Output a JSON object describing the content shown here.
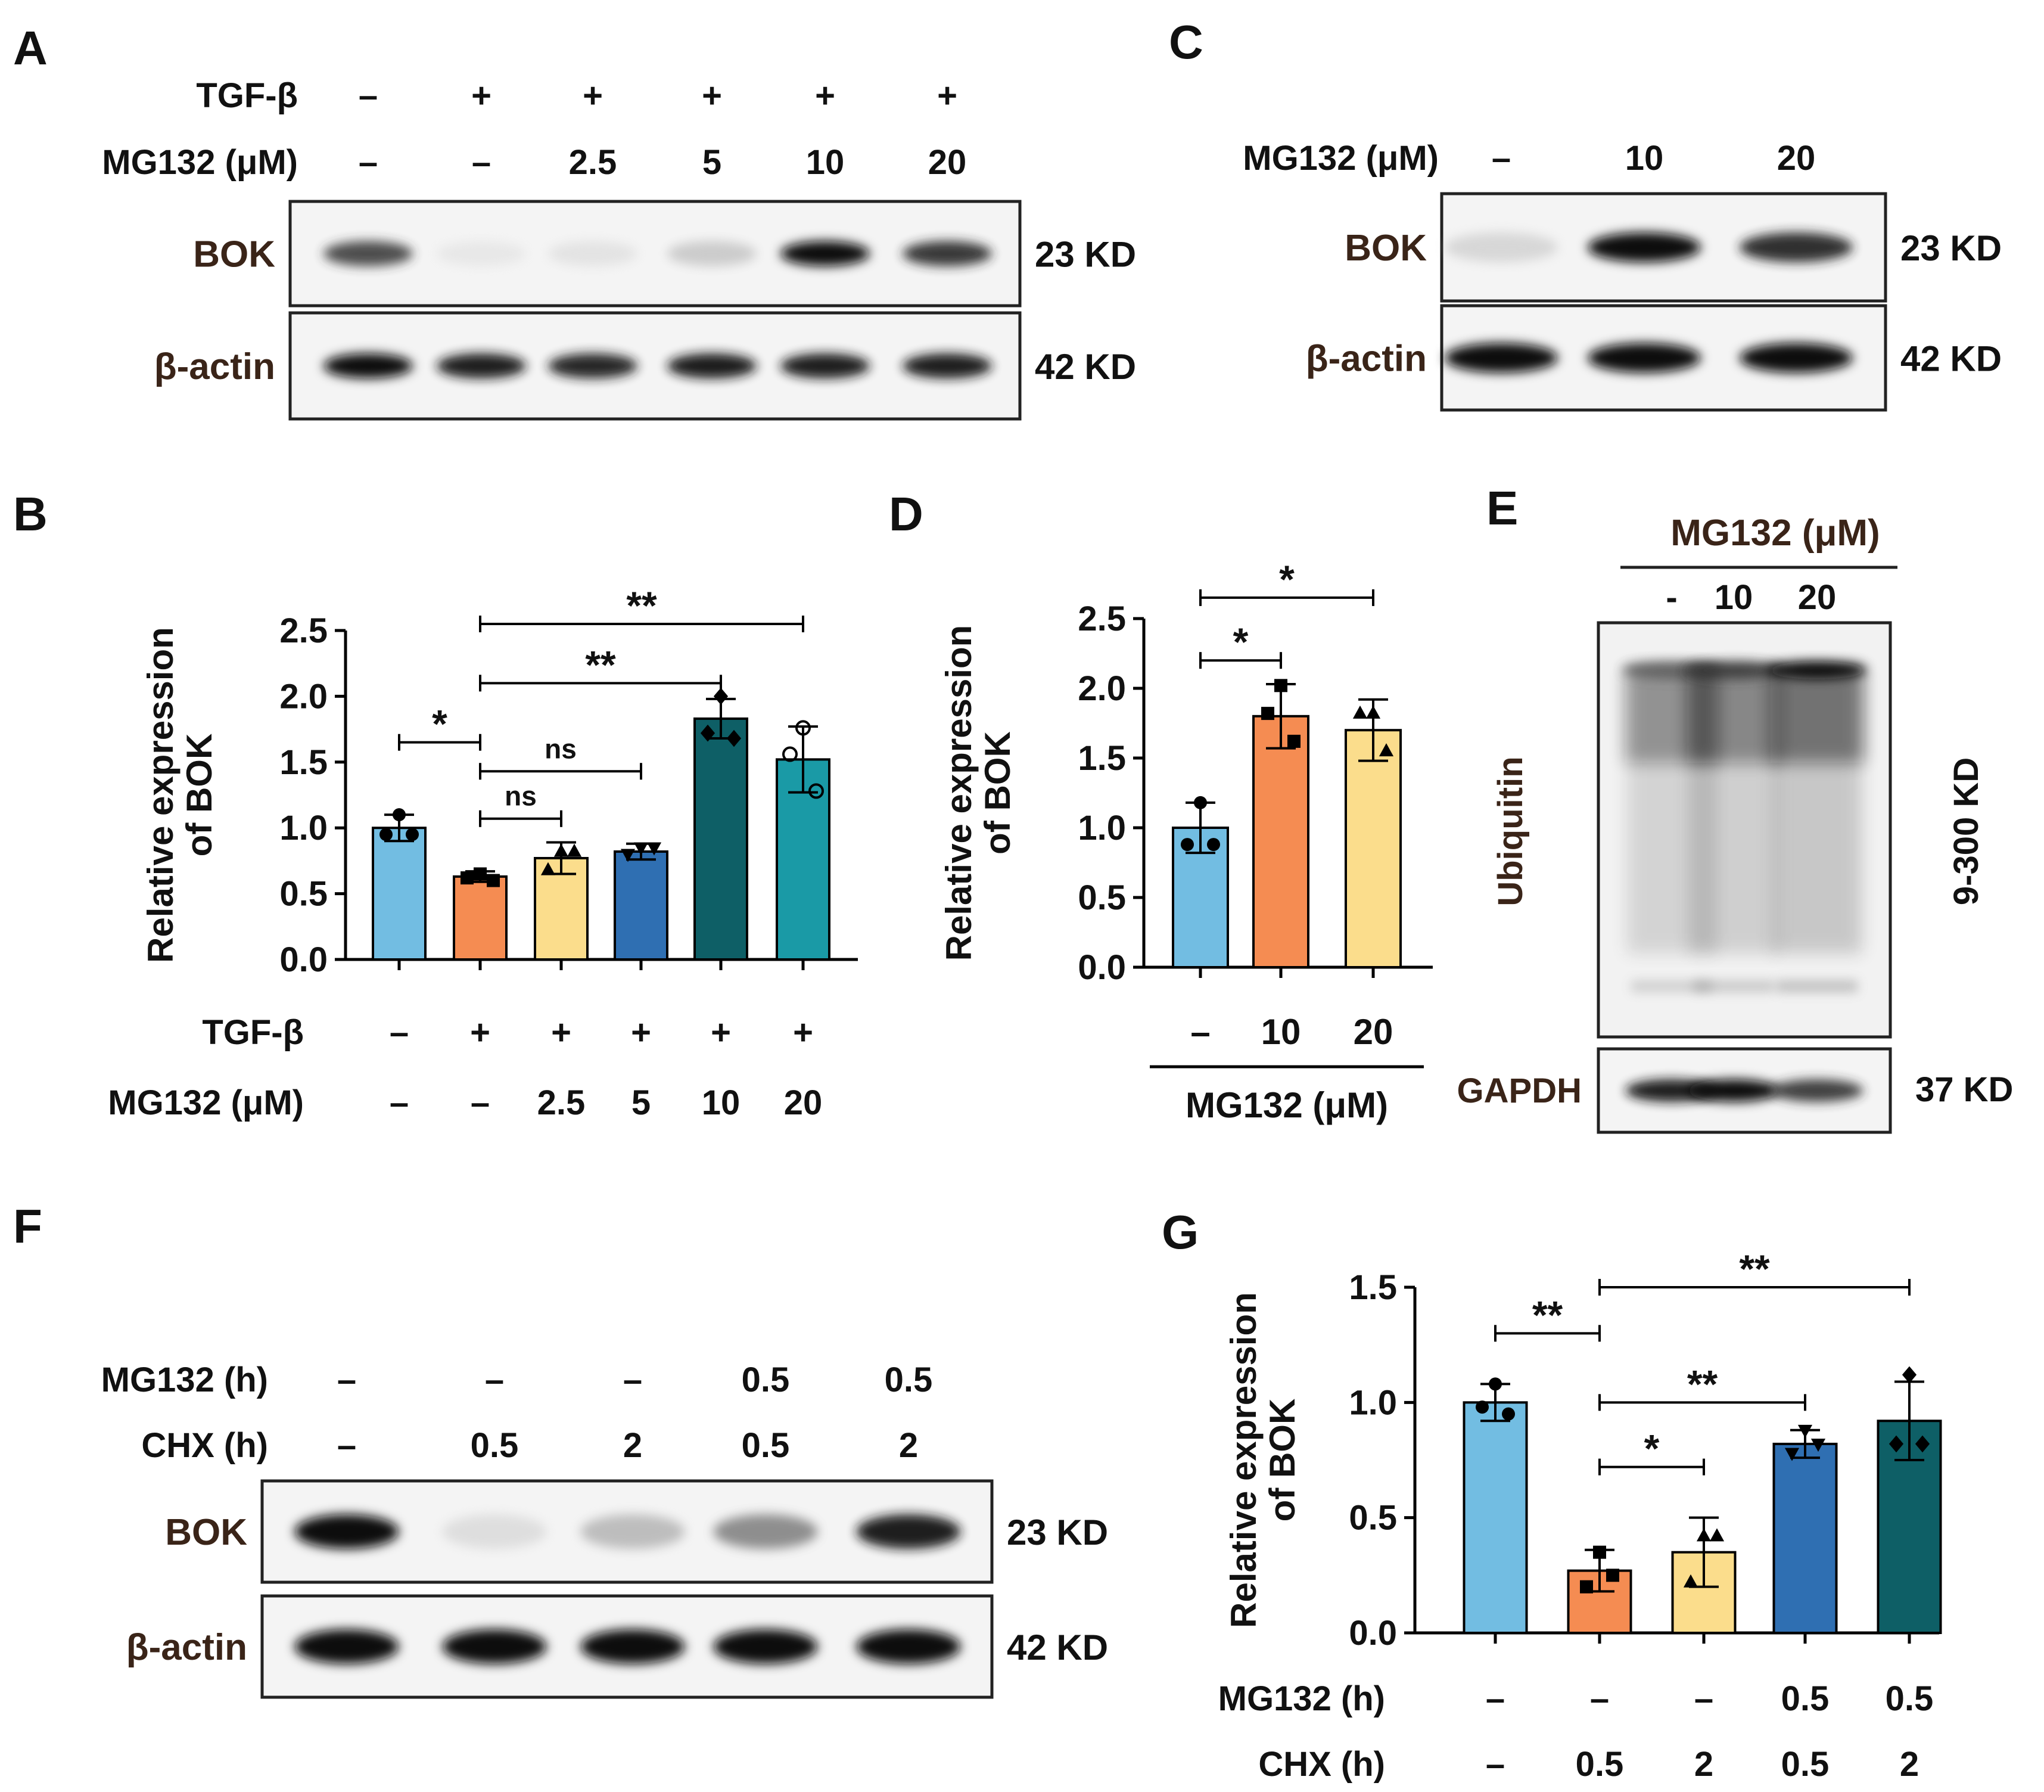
{
  "panels": {
    "A": {
      "letter": "A",
      "rows": [
        {
          "label": "TGF-β",
          "values": [
            "–",
            "+",
            "+",
            "+",
            "+",
            "+"
          ]
        },
        {
          "label": "MG132 (μM)",
          "values": [
            "–",
            "–",
            "2.5",
            "5",
            "10",
            "20"
          ]
        }
      ],
      "blots": [
        {
          "protein": "BOK",
          "size": "23 KD",
          "bands": [
            0.82,
            0.12,
            0.16,
            0.32,
            1.0,
            0.88
          ]
        },
        {
          "protein": "β-actin",
          "size": "42 KD",
          "bands": [
            1.0,
            0.95,
            0.93,
            0.96,
            0.95,
            0.95
          ]
        }
      ]
    },
    "C": {
      "letter": "C",
      "rows": [
        {
          "label": "MG132 (μM)",
          "values": [
            "–",
            "10",
            "20"
          ]
        }
      ],
      "blots": [
        {
          "protein": "BOK",
          "size": "23 KD",
          "bands": [
            0.25,
            1.0,
            0.9
          ]
        },
        {
          "protein": "β-actin",
          "size": "42 KD",
          "bands": [
            1.0,
            1.0,
            1.0
          ]
        }
      ]
    },
    "E": {
      "letter": "E",
      "header": "MG132 (μM)",
      "lanes": [
        "-",
        "10",
        "20"
      ],
      "smear_label": "Ubiquitin",
      "smear_size": "9-300 KD",
      "smear_levels": [
        0.7,
        0.82,
        1.0
      ],
      "loading_protein": "GAPDH",
      "loading_size": "37 KD",
      "loading_bands": [
        0.95,
        1.0,
        0.85
      ]
    },
    "F": {
      "letter": "F",
      "rows": [
        {
          "label": "MG132 (h)",
          "values": [
            "–",
            "–",
            "–",
            "0.5",
            "0.5"
          ]
        },
        {
          "label": "CHX (h)",
          "values": [
            "–",
            "0.5",
            "2",
            "0.5",
            "2"
          ]
        }
      ],
      "blots": [
        {
          "protein": "BOK",
          "size": "23 KD",
          "bands": [
            1.0,
            0.2,
            0.4,
            0.6,
            0.95
          ]
        },
        {
          "protein": "β-actin",
          "size": "42 KD",
          "bands": [
            1.0,
            1.0,
            1.0,
            1.0,
            1.0
          ]
        }
      ]
    }
  },
  "chart_data": [
    {
      "panel": "B",
      "type": "bar",
      "ylabel": "Relative expression of BOK",
      "ylim": [
        0,
        2.5
      ],
      "yticks": [
        "0.0",
        "0.5",
        "1.0",
        "1.5",
        "2.0",
        "2.5"
      ],
      "rows": [
        {
          "label": "TGF-β",
          "values": [
            "–",
            "+",
            "+",
            "+",
            "+",
            "+"
          ]
        },
        {
          "label": "MG132 (μM)",
          "values": [
            "–",
            "–",
            "2.5",
            "5",
            "10",
            "20"
          ]
        }
      ],
      "values": [
        1.0,
        0.63,
        0.77,
        0.82,
        1.83,
        1.52
      ],
      "errors": [
        0.1,
        0.04,
        0.12,
        0.06,
        0.15,
        0.25
      ],
      "points": [
        [
          1.1,
          0.95,
          0.95
        ],
        [
          0.65,
          0.62,
          0.6
        ],
        [
          0.82,
          0.68,
          0.82
        ],
        [
          0.85,
          0.8,
          0.85
        ],
        [
          2.0,
          1.72,
          1.68
        ],
        [
          1.76,
          1.56,
          1.28
        ]
      ],
      "markers": [
        "circle",
        "square",
        "triangle",
        "triangle-down",
        "diamond",
        "circle-open"
      ],
      "colors": [
        "#72bde2",
        "#f58c52",
        "#fbdd8c",
        "#2f6fb2",
        "#0e5f66",
        "#1a9aa6"
      ],
      "significance": [
        {
          "from": 0,
          "to": 1,
          "y": 1.65,
          "label": "*"
        },
        {
          "from": 1,
          "to": 2,
          "y": 1.07,
          "label": "ns"
        },
        {
          "from": 1,
          "to": 3,
          "y": 1.43,
          "label": "ns"
        },
        {
          "from": 1,
          "to": 4,
          "y": 2.1,
          "label": "**"
        },
        {
          "from": 1,
          "to": 5,
          "y": 2.55,
          "label": "**"
        }
      ]
    },
    {
      "panel": "D",
      "type": "bar",
      "ylabel": "Relative expression of BOK",
      "ylim": [
        0,
        2.5
      ],
      "yticks": [
        "0.0",
        "0.5",
        "1.0",
        "1.5",
        "2.0",
        "2.5"
      ],
      "categories": [
        "–",
        "10",
        "20"
      ],
      "xlabel": "MG132 (μM)",
      "values": [
        1.0,
        1.8,
        1.7
      ],
      "errors": [
        0.18,
        0.23,
        0.22
      ],
      "points": [
        [
          1.18,
          0.88,
          0.88
        ],
        [
          2.02,
          1.82,
          1.62
        ],
        [
          1.82,
          1.82,
          1.55
        ]
      ],
      "markers": [
        "circle",
        "square",
        "triangle"
      ],
      "colors": [
        "#72bde2",
        "#f58c52",
        "#fbdd8c"
      ],
      "significance": [
        {
          "from": 0,
          "to": 1,
          "y": 2.2,
          "label": "*"
        },
        {
          "from": 0,
          "to": 2,
          "y": 2.65,
          "label": "*"
        }
      ]
    },
    {
      "panel": "G",
      "type": "bar",
      "ylabel": "Relative expression of BOK",
      "ylim": [
        0,
        1.5
      ],
      "yticks": [
        "0.0",
        "0.5",
        "1.0",
        "1.5"
      ],
      "rows": [
        {
          "label": "MG132 (h)",
          "values": [
            "–",
            "–",
            "–",
            "0.5",
            "0.5"
          ]
        },
        {
          "label": "CHX (h)",
          "values": [
            "–",
            "0.5",
            "2",
            "0.5",
            "2"
          ]
        }
      ],
      "values": [
        1.0,
        0.27,
        0.35,
        0.82,
        0.92
      ],
      "errors": [
        0.08,
        0.09,
        0.15,
        0.06,
        0.17
      ],
      "points": [
        [
          1.08,
          0.98,
          0.95
        ],
        [
          0.35,
          0.2,
          0.25
        ],
        [
          0.42,
          0.22,
          0.42
        ],
        [
          0.88,
          0.78,
          0.82
        ],
        [
          1.12,
          0.82,
          0.82
        ]
      ],
      "markers": [
        "circle",
        "square",
        "triangle",
        "triangle-down",
        "diamond"
      ],
      "colors": [
        "#72bde2",
        "#f58c52",
        "#fbdd8c",
        "#2f6fb2",
        "#0e5f66"
      ],
      "significance": [
        {
          "from": 0,
          "to": 1,
          "y": 1.3,
          "label": "**"
        },
        {
          "from": 1,
          "to": 2,
          "y": 0.72,
          "label": "*"
        },
        {
          "from": 1,
          "to": 3,
          "y": 1.0,
          "label": "**"
        },
        {
          "from": 1,
          "to": 4,
          "y": 1.5,
          "label": "**"
        }
      ]
    }
  ]
}
